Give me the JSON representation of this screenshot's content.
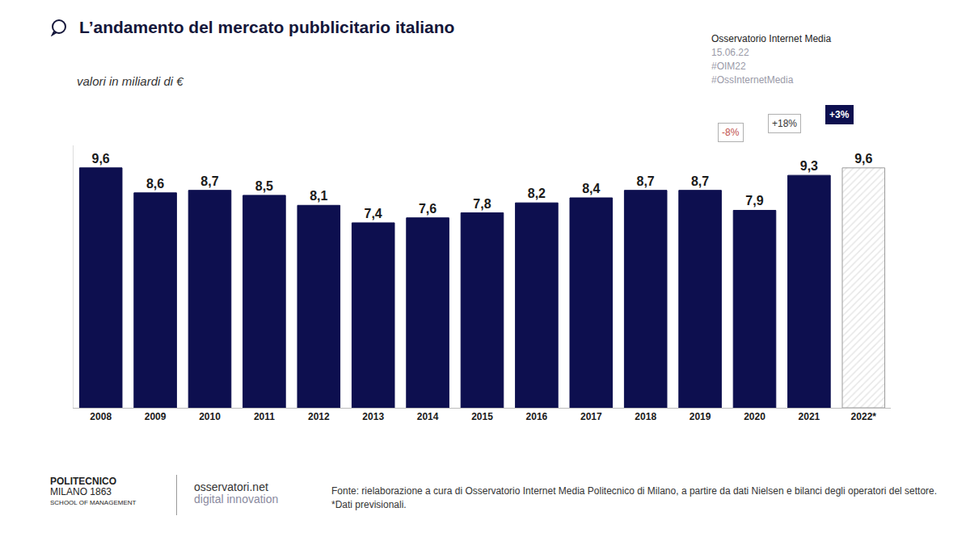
{
  "chart_data": {
    "type": "bar",
    "title": "L’andamento del mercato pubblicitario italiano",
    "subtitle": "valori in miliardi di €",
    "categories": [
      "2008",
      "2009",
      "2010",
      "2011",
      "2012",
      "2013",
      "2014",
      "2015",
      "2016",
      "2017",
      "2018",
      "2019",
      "2020",
      "2021",
      "2022*"
    ],
    "values": [
      9.6,
      8.6,
      8.7,
      8.5,
      8.1,
      7.4,
      7.6,
      7.8,
      8.2,
      8.4,
      8.7,
      8.7,
      7.9,
      9.3,
      9.6
    ],
    "value_labels": [
      "9,6",
      "8,6",
      "8,7",
      "8,5",
      "8,1",
      "7,4",
      "7,6",
      "7,8",
      "8,2",
      "8,4",
      "8,7",
      "8,7",
      "7,9",
      "9,3",
      "9,6"
    ],
    "data_labels": true,
    "colors": [
      "#0d0f4f",
      "#0d0f4f",
      "#0d0f4f",
      "#0d0f4f",
      "#0d0f4f",
      "#0d0f4f",
      "#0d0f4f",
      "#0d0f4f",
      "#0d0f4f",
      "#0d0f4f",
      "#0d0f4f",
      "#0d0f4f",
      "#0d0f4f",
      "#0d0f4f",
      "#e6e6e6"
    ],
    "ylim": [
      0,
      10.5
    ],
    "yticks": [],
    "tick_labels": "x",
    "grid": false,
    "annotations": [
      {
        "text": "-8%",
        "category": "2020",
        "color": "#c0504d",
        "marker": "outline"
      },
      {
        "text": "+18%",
        "category": "2021",
        "color": "#333333",
        "marker": "outline"
      },
      {
        "text": "+3%",
        "category": "2022*",
        "color": "#0d0f4f",
        "marker": "filled"
      }
    ]
  },
  "header": {
    "source_name": "Osservatorio Internet Media",
    "date": "15.06.22",
    "hashtags": [
      "#OIM22",
      "#OssInternetMedia"
    ]
  },
  "footer": {
    "logo_1": [
      "POLITECNICO",
      "MILANO 1863",
      "SCHOOL OF MANAGEMENT"
    ],
    "logo_2": [
      "osservatori.net",
      "digital innovation"
    ],
    "source": "Fonte: rielaborazione a cura di Osservatorio Internet Media Politecnico di Milano, a partire da dati Nielsen e bilanci degli operatori del settore. *Dati previsionali."
  }
}
